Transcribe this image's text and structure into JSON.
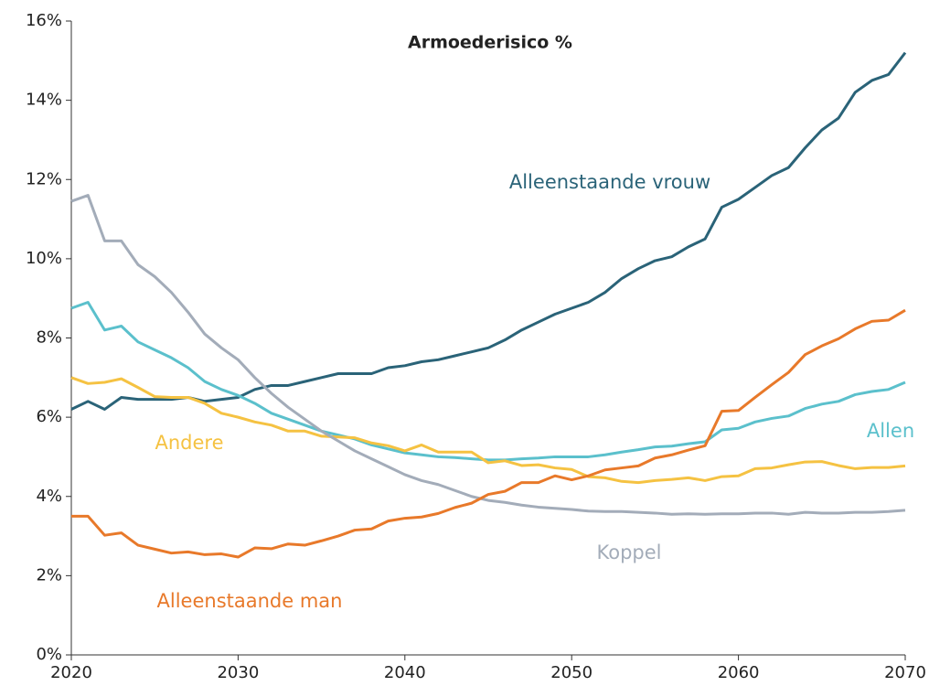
{
  "chart_data": {
    "type": "line",
    "title": "Armoederisico %",
    "x": [
      2020,
      2021,
      2022,
      2023,
      2024,
      2025,
      2026,
      2027,
      2028,
      2029,
      2030,
      2031,
      2032,
      2033,
      2034,
      2035,
      2036,
      2037,
      2038,
      2039,
      2040,
      2041,
      2042,
      2043,
      2044,
      2045,
      2046,
      2047,
      2048,
      2049,
      2050,
      2051,
      2052,
      2053,
      2054,
      2055,
      2056,
      2057,
      2058,
      2059,
      2060,
      2061,
      2062,
      2063,
      2064,
      2065,
      2066,
      2067,
      2068,
      2069,
      2070
    ],
    "series": [
      {
        "name": "Alleenstaande vrouw",
        "color": "#2a6378",
        "values": [
          6.2,
          6.4,
          6.2,
          6.5,
          6.45,
          6.45,
          6.45,
          6.5,
          6.4,
          6.45,
          6.5,
          6.7,
          6.8,
          6.8,
          6.9,
          7.0,
          7.1,
          7.1,
          7.1,
          7.25,
          7.3,
          7.4,
          7.45,
          7.55,
          7.65,
          7.75,
          7.95,
          8.2,
          8.4,
          8.6,
          8.75,
          8.9,
          9.15,
          9.5,
          9.75,
          9.95,
          10.05,
          10.3,
          10.5,
          11.3,
          11.5,
          11.8,
          12.1,
          12.3,
          12.8,
          13.25,
          13.55,
          14.2,
          14.5,
          14.65,
          15.2
        ]
      },
      {
        "name": "Allen",
        "color": "#5bc0cc",
        "values": [
          8.75,
          8.9,
          8.2,
          8.3,
          7.9,
          7.7,
          7.5,
          7.25,
          6.9,
          6.7,
          6.55,
          6.35,
          6.1,
          5.95,
          5.8,
          5.65,
          5.55,
          5.45,
          5.3,
          5.2,
          5.1,
          5.05,
          5.0,
          4.98,
          4.95,
          4.92,
          4.92,
          4.95,
          4.97,
          5.0,
          5.0,
          5.0,
          5.05,
          5.12,
          5.18,
          5.25,
          5.27,
          5.33,
          5.38,
          5.68,
          5.72,
          5.88,
          5.97,
          6.03,
          6.22,
          6.33,
          6.4,
          6.57,
          6.65,
          6.7,
          6.88
        ]
      },
      {
        "name": "Andere",
        "color": "#f5c242",
        "values": [
          7.0,
          6.85,
          6.88,
          6.97,
          6.75,
          6.52,
          6.5,
          6.5,
          6.35,
          6.1,
          6.0,
          5.88,
          5.8,
          5.65,
          5.65,
          5.52,
          5.5,
          5.48,
          5.35,
          5.28,
          5.15,
          5.3,
          5.12,
          5.12,
          5.12,
          4.85,
          4.9,
          4.78,
          4.8,
          4.72,
          4.68,
          4.5,
          4.47,
          4.38,
          4.35,
          4.4,
          4.43,
          4.47,
          4.4,
          4.5,
          4.52,
          4.7,
          4.72,
          4.8,
          4.87,
          4.88,
          4.78,
          4.7,
          4.73,
          4.73,
          4.77
        ]
      },
      {
        "name": "Koppel",
        "color": "#a3acb9",
        "values": [
          11.45,
          11.6,
          10.45,
          10.45,
          9.85,
          9.55,
          9.15,
          8.65,
          8.1,
          7.75,
          7.45,
          7.0,
          6.6,
          6.25,
          5.95,
          5.65,
          5.4,
          5.15,
          4.95,
          4.75,
          4.55,
          4.4,
          4.3,
          4.15,
          4.0,
          3.9,
          3.85,
          3.78,
          3.73,
          3.7,
          3.67,
          3.63,
          3.62,
          3.62,
          3.6,
          3.58,
          3.55,
          3.56,
          3.55,
          3.56,
          3.56,
          3.58,
          3.58,
          3.55,
          3.6,
          3.58,
          3.58,
          3.6,
          3.6,
          3.62,
          3.65
        ]
      },
      {
        "name": "Alleenstaande man",
        "color": "#e8792a",
        "values": [
          3.5,
          3.5,
          3.02,
          3.08,
          2.77,
          2.67,
          2.57,
          2.6,
          2.53,
          2.55,
          2.47,
          2.7,
          2.68,
          2.8,
          2.77,
          2.88,
          3.0,
          3.15,
          3.18,
          3.38,
          3.45,
          3.48,
          3.57,
          3.72,
          3.83,
          4.05,
          4.13,
          4.35,
          4.35,
          4.52,
          4.42,
          4.52,
          4.67,
          4.72,
          4.77,
          4.97,
          5.05,
          5.17,
          5.28,
          6.15,
          6.17,
          6.5,
          6.82,
          7.13,
          7.58,
          7.8,
          7.98,
          8.23,
          8.42,
          8.45,
          8.7
        ]
      }
    ],
    "xlim": [
      2020,
      2070
    ],
    "xticks": [
      2020,
      2030,
      2040,
      2050,
      2060,
      2070
    ],
    "ylim": [
      0,
      16
    ],
    "yticks": [
      {
        "value": 0,
        "label": "0%"
      },
      {
        "value": 2,
        "label": "2%"
      },
      {
        "value": 4,
        "label": "4%"
      },
      {
        "value": 6,
        "label": "6%"
      },
      {
        "value": 8,
        "label": "8%"
      },
      {
        "value": 10,
        "label": "10%"
      },
      {
        "value": 12,
        "label": "12%"
      },
      {
        "value": 14,
        "label": "14%"
      },
      {
        "value": 16,
        "label": "16%"
      }
    ],
    "grid": false
  }
}
